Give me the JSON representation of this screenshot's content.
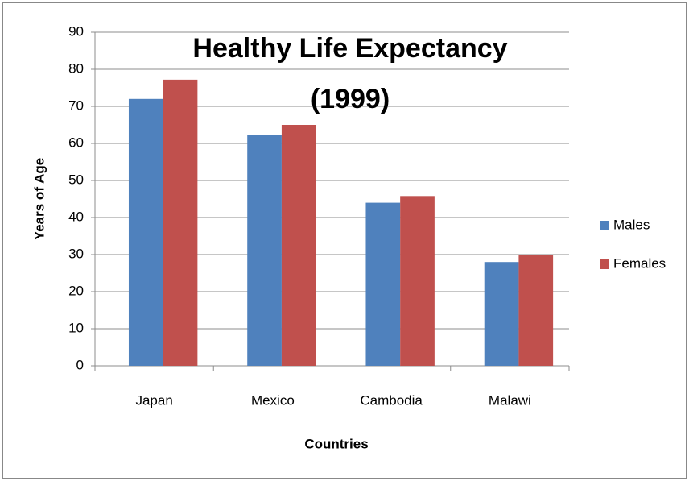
{
  "chart_data": {
    "type": "bar",
    "title": [
      "Healthy Life Expectancy",
      "(1999)"
    ],
    "xlabel": "Countries",
    "ylabel": "Years of Age",
    "categories": [
      "Japan",
      "Mexico",
      "Cambodia",
      "Malawi"
    ],
    "series": [
      {
        "name": "Males",
        "color": "#4f81bd",
        "values": [
          72,
          62.3,
          44,
          28
        ]
      },
      {
        "name": "Females",
        "color": "#c0504d",
        "values": [
          77.2,
          65,
          45.8,
          30
        ]
      }
    ],
    "ylim": [
      0,
      90
    ],
    "yticks": [
      0,
      10,
      20,
      30,
      40,
      50,
      60,
      70,
      80,
      90
    ],
    "grid": true,
    "legend": "right"
  }
}
